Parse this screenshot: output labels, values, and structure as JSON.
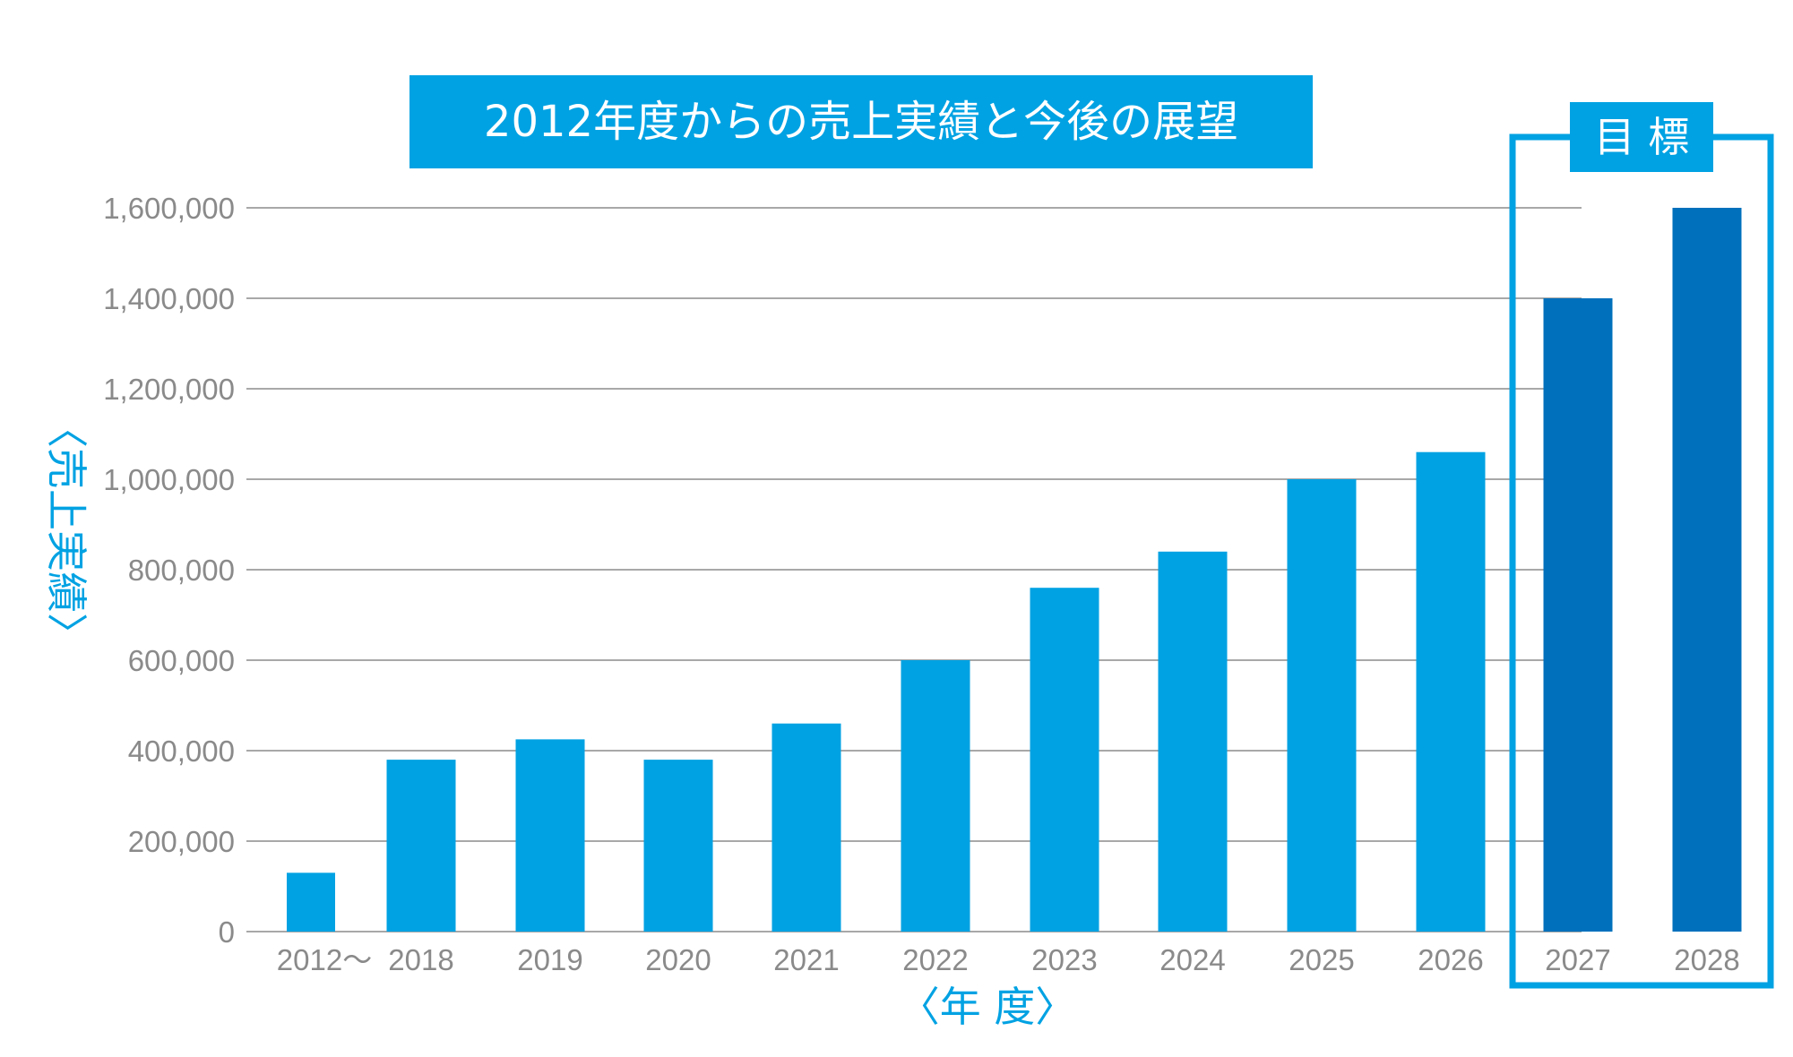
{
  "chart_data": {
    "type": "bar",
    "title": "2012年度からの売上実績と今後の展望",
    "target_label": "目 標",
    "xlabel": "〈年 度〉",
    "ylabel": "〈売上実績〉",
    "ylim": [
      0,
      1600000
    ],
    "yticks": [
      0,
      200000,
      400000,
      600000,
      800000,
      1000000,
      1200000,
      1400000,
      1600000
    ],
    "ytick_labels": [
      "0",
      "200,000",
      "400,000",
      "600,000",
      "800,000",
      "1,000,000",
      "1,200,000",
      "1,400,000",
      "1,600,000"
    ],
    "categories": [
      "2012〜",
      "2018",
      "2019",
      "2020",
      "2021",
      "2022",
      "2023",
      "2024",
      "2025",
      "2026",
      "2027",
      "2028"
    ],
    "values": [
      130000,
      380000,
      425000,
      380000,
      460000,
      600000,
      760000,
      840000,
      1000000,
      1060000,
      1400000,
      1600000
    ],
    "target_categories": [
      "2027",
      "2028"
    ],
    "grid": true,
    "colors": {
      "actual": "#00a2e3",
      "target": "#0070bc",
      "grid": "#8c8c8c",
      "tick_text": "#8a8a8a",
      "title_bg": "#00a2e3",
      "title_text": "#ffffff",
      "axis_label": "#00a2e3",
      "target_frame": "#00a2e3"
    }
  }
}
